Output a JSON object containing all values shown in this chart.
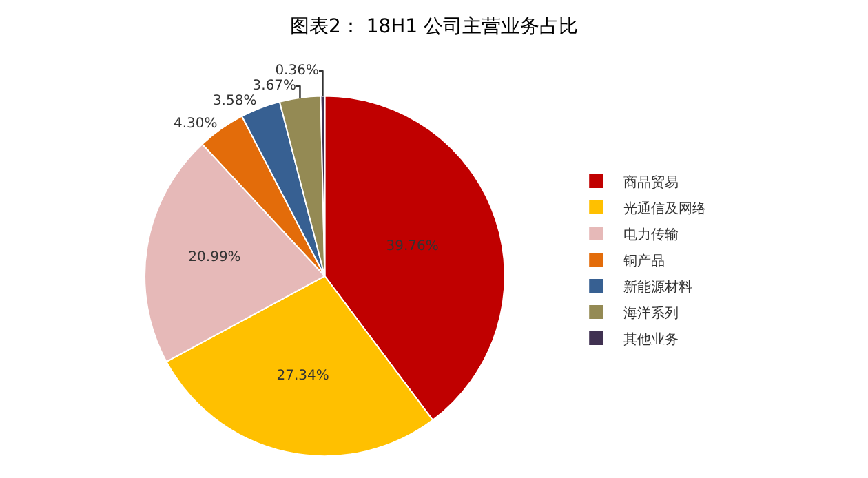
{
  "chart_data": {
    "type": "pie",
    "title": "图表2： 18H1 公司主营业务占比",
    "categories": [
      "商品贸易",
      "光通信及网络",
      "电力传输",
      "铜产品",
      "新能源材料",
      "海洋系列",
      "其他业务"
    ],
    "values": [
      39.76,
      27.34,
      20.99,
      4.3,
      3.58,
      3.67,
      0.36
    ],
    "colors": [
      "#c00000",
      "#ffc000",
      "#e6b9b8",
      "#e36c0a",
      "#376092",
      "#948a54",
      "#403151"
    ],
    "value_labels": [
      "39.76%",
      "27.34%",
      "20.99%",
      "4.30%",
      "3.58%",
      "3.67%",
      "0.36%"
    ],
    "legend": "right"
  }
}
